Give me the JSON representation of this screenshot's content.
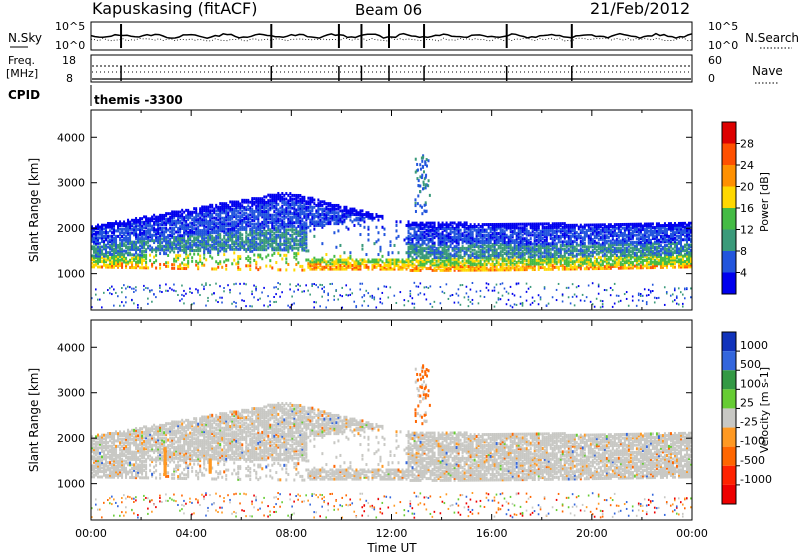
{
  "header": {
    "station": "Kapuskasing (fitACF)",
    "beam": "Beam 06",
    "date": "21/Feb/2012"
  },
  "top_panels": {
    "nsky": {
      "label": "N.Sky",
      "right_label": "N.Search",
      "left_ticks": [
        "10^5",
        "10^0"
      ],
      "right_ticks": [
        "10^5",
        "10^0"
      ]
    },
    "freq": {
      "label_line1": "Freq.",
      "label_line2": "[MHz]",
      "right_label": "Nave",
      "left_ticks": [
        "18",
        "8"
      ],
      "right_ticks": [
        "60",
        "0"
      ]
    },
    "cpid": {
      "label": "CPID",
      "value": "themis -3300"
    }
  },
  "chart_data": [
    {
      "type": "heatmap",
      "title": "",
      "parameter": "Power",
      "ylabel": "Slant Range [km]",
      "xlabel": "",
      "ylim": [
        200,
        4600
      ],
      "y_ticks": [
        1000,
        2000,
        3000,
        4000
      ],
      "colorbar": {
        "label": "Power [dB]",
        "ticks": [
          "4",
          "8",
          "12",
          "16",
          "20",
          "24",
          "28"
        ],
        "colors": [
          "#0000ee",
          "#2255dd",
          "#3a9a7a",
          "#44bb44",
          "#ffd800",
          "#ff9000",
          "#ff5000",
          "#dd0000"
        ]
      }
    },
    {
      "type": "heatmap",
      "title": "",
      "parameter": "Velocity",
      "ylabel": "Slant Range [km]",
      "xlabel": "Time UT",
      "ylim": [
        200,
        4600
      ],
      "y_ticks": [
        1000,
        2000,
        3000,
        4000
      ],
      "x_ticks": [
        "00:00",
        "04:00",
        "08:00",
        "12:00",
        "16:00",
        "20:00",
        "00:00"
      ],
      "colorbar": {
        "label": "Velocity [m s-1]",
        "ticks": [
          "1000",
          "500",
          "100",
          "25",
          "-25",
          "-100",
          "-500",
          "-1000"
        ],
        "colors": [
          "#1133bb",
          "#3366dd",
          "#339944",
          "#66cc33",
          "#c8c8c4",
          "#ff9922",
          "#ff6600",
          "#ff2200",
          "#ee0000"
        ]
      }
    }
  ]
}
